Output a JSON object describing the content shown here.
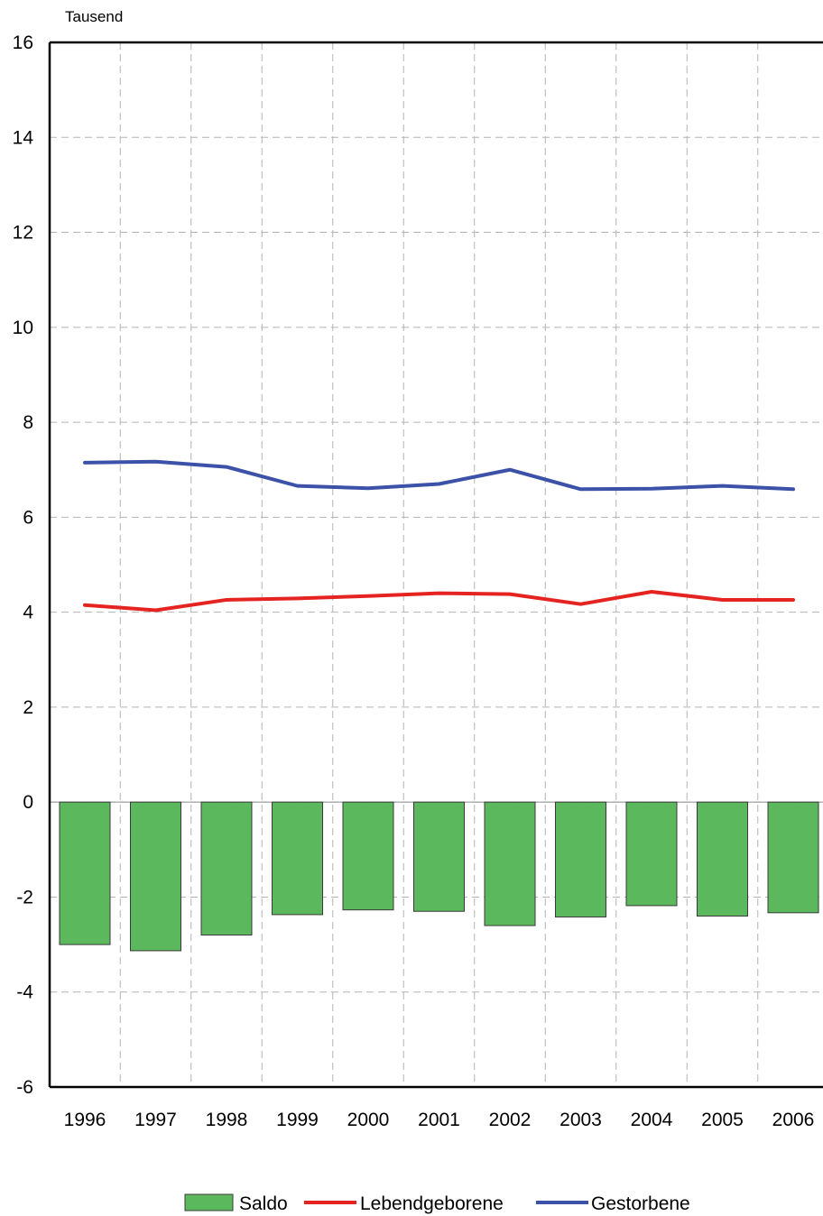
{
  "chart_data": {
    "type": "bar",
    "title": "",
    "xlabel": "",
    "ylabel": "Tausend",
    "categories": [
      "1996",
      "1997",
      "1998",
      "1999",
      "2000",
      "2001",
      "2002",
      "2003",
      "2004",
      "2005",
      "2006"
    ],
    "ylim": [
      -6,
      16
    ],
    "yticks": [
      16,
      14,
      12,
      10,
      8,
      6,
      4,
      2,
      0,
      -2,
      -4,
      -6
    ],
    "grid": true,
    "legend_position": "bottom",
    "series": [
      {
        "name": "Saldo",
        "kind": "bar",
        "color": "#5cb85c",
        "values": [
          -3.0,
          -3.13,
          -2.8,
          -2.37,
          -2.27,
          -2.3,
          -2.6,
          -2.42,
          -2.18,
          -2.4,
          -2.33
        ]
      },
      {
        "name": "Lebendgeborene",
        "kind": "line",
        "color": "#e52421",
        "values": [
          4.15,
          4.04,
          4.26,
          4.29,
          4.34,
          4.4,
          4.38,
          4.17,
          4.43,
          4.26,
          4.26
        ]
      },
      {
        "name": "Gestorbene",
        "kind": "line",
        "color": "#3c52a8",
        "values": [
          7.15,
          7.17,
          7.06,
          6.66,
          6.61,
          6.7,
          7.0,
          6.59,
          6.6,
          6.66,
          6.59
        ]
      }
    ]
  }
}
